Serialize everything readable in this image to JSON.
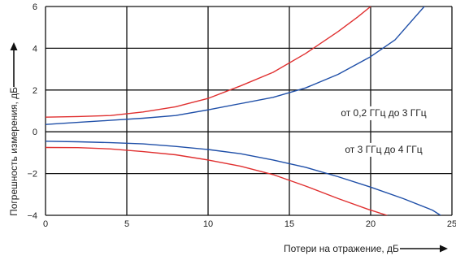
{
  "chart_data": {
    "type": "line",
    "title": "",
    "xlabel": "Потери на отражение, дБ",
    "ylabel": "Погрешность измерения, дБ",
    "xlim": [
      0,
      25
    ],
    "ylim": [
      -4,
      6
    ],
    "x_ticks": [
      "0",
      "5",
      "10",
      "15",
      "20",
      "25"
    ],
    "y_ticks": [
      "−4",
      "−2",
      "0",
      "2",
      "4",
      "6"
    ],
    "grid": true,
    "legend": "none",
    "annotations": [
      {
        "text": "от 0,2 ГГц до 3 ГГц",
        "x": 20.8,
        "y": 0.75
      },
      {
        "text": "от 3 ГГц до 4 ГГц",
        "x": 20.8,
        "y": -1.0
      }
    ],
    "series": [
      {
        "color": "#e03030",
        "x": [
          0,
          2,
          4,
          6,
          8,
          10,
          12,
          14,
          16,
          18,
          19.2,
          20
        ],
        "y": [
          0.7,
          0.73,
          0.78,
          0.95,
          1.2,
          1.6,
          2.2,
          2.85,
          3.75,
          4.8,
          5.5,
          6.0
        ]
      },
      {
        "color": "#1f4fa8",
        "x": [
          0,
          2,
          4,
          6,
          8,
          10,
          12,
          14,
          16,
          18,
          20,
          21.5,
          23.3
        ],
        "y": [
          0.35,
          0.45,
          0.55,
          0.65,
          0.78,
          1.05,
          1.35,
          1.65,
          2.1,
          2.75,
          3.6,
          4.4,
          6.0
        ]
      },
      {
        "color": "#1f4fa8",
        "x": [
          0,
          2,
          4,
          6,
          8,
          10,
          12,
          14,
          16,
          18,
          20,
          22,
          23.8,
          24.3
        ],
        "y": [
          -0.45,
          -0.48,
          -0.52,
          -0.58,
          -0.7,
          -0.85,
          -1.05,
          -1.35,
          -1.7,
          -2.15,
          -2.65,
          -3.2,
          -3.75,
          -4.0
        ]
      },
      {
        "color": "#e03030",
        "x": [
          0,
          2,
          4,
          6,
          8,
          10,
          12,
          14,
          16,
          18,
          19.8,
          21
        ],
        "y": [
          -0.75,
          -0.76,
          -0.82,
          -0.95,
          -1.1,
          -1.35,
          -1.65,
          -2.05,
          -2.6,
          -3.2,
          -3.7,
          -4.0
        ]
      }
    ]
  }
}
